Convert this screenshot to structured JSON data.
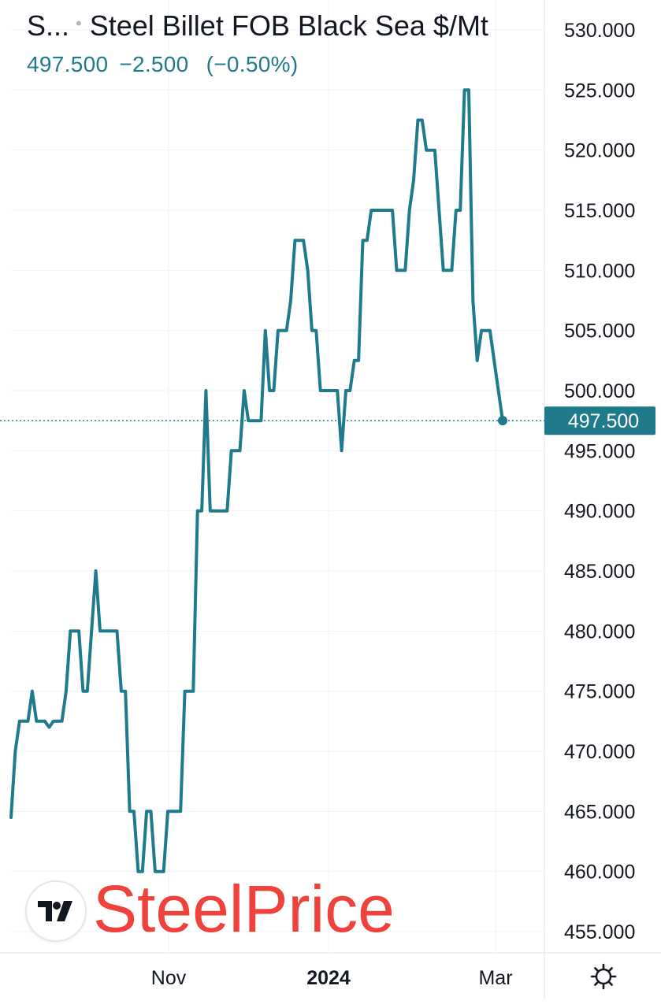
{
  "header": {
    "symbol_short": "S...",
    "title": "Steel Billet FOB Black Sea $/Mt",
    "last_price": "497.500",
    "change": "−2.500",
    "change_percent": "(−0.50%)"
  },
  "watermark": {
    "text": "SteelPrice"
  },
  "icons": {
    "logo": "tradingview-logo-icon",
    "settings": "gear-icon"
  },
  "colors": {
    "line": "#1f7a8c",
    "price_badge": "#1f7a8c",
    "watermark": "#f0423c",
    "grid": "#f0f3fa"
  },
  "chart_data": {
    "type": "line",
    "title": "Steel Billet FOB Black Sea $/Mt",
    "xlabel": "",
    "ylabel": "",
    "x_tick_labels": [
      "Nov",
      "2024",
      "Mar"
    ],
    "y_tick_labels": [
      "530.000",
      "525.000",
      "520.000",
      "515.000",
      "510.000",
      "505.000",
      "500.000",
      "495.000",
      "490.000",
      "485.000",
      "480.000",
      "475.000",
      "470.000",
      "465.000",
      "460.000",
      "455.000"
    ],
    "ylim": [
      455,
      530
    ],
    "last_value_label": "497.500",
    "grid": true,
    "series": [
      {
        "values": [
          464.5,
          470,
          472.5,
          472.5,
          472.5,
          475,
          472.5,
          472.5,
          472.5,
          472,
          472.5,
          472.5,
          472.5,
          475,
          480,
          480,
          480,
          475,
          475,
          480,
          485,
          480,
          480,
          480,
          480,
          480,
          475,
          475,
          465,
          465,
          460,
          460,
          465,
          465,
          460,
          460,
          460,
          465,
          465,
          465,
          465,
          475,
          475,
          475,
          490,
          490,
          500,
          490,
          490,
          490,
          490,
          490,
          495,
          495,
          495,
          500,
          497.5,
          497.5,
          497.5,
          497.5,
          505,
          500,
          500,
          505,
          505,
          505,
          507.5,
          512.5,
          512.5,
          512.5,
          510,
          505,
          505,
          500,
          500,
          500,
          500,
          500,
          495,
          500,
          500,
          502.5,
          502.5,
          512.5,
          512.5,
          515,
          515,
          515,
          515,
          515,
          515,
          510,
          510,
          510,
          515,
          517.5,
          522.5,
          522.5,
          520,
          520,
          520,
          515,
          510,
          510,
          510,
          515,
          515,
          525,
          525,
          507.5,
          502.5,
          505,
          505,
          505,
          502.5,
          500,
          497.5
        ]
      }
    ]
  }
}
